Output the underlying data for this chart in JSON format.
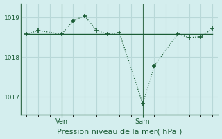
{
  "background_color": "#d4eeee",
  "grid_color": "#b8d8d8",
  "line_color": "#1a5c35",
  "marker_color": "#1a5c35",
  "xlabel": "Pression niveau de la mer( hPa )",
  "xlabel_color": "#1a5c35",
  "tick_color": "#1a5c35",
  "axis_color": "#3a7050",
  "ylim": [
    1016.55,
    1019.35
  ],
  "yticks": [
    1017.0,
    1018.0,
    1019.0
  ],
  "ven_x": 3,
  "sam_x": 10,
  "num_x_gridlines": 11,
  "x_values": [
    0,
    1,
    3,
    4,
    5,
    6,
    7,
    8,
    10,
    11,
    13,
    14,
    15,
    16
  ],
  "y_main": [
    1018.58,
    1018.68,
    1018.58,
    1018.92,
    1019.05,
    1018.68,
    1018.58,
    1018.62,
    1016.82,
    1017.78,
    1018.58,
    1018.5,
    1018.52,
    1018.72
  ],
  "y_ref": [
    1018.58,
    1018.58,
    1018.58,
    1018.58,
    1018.58,
    1018.58,
    1018.58,
    1018.58,
    1018.58,
    1018.58,
    1018.58,
    1018.58,
    1018.58,
    1018.58
  ],
  "xlim": [
    -0.5,
    16.5
  ]
}
